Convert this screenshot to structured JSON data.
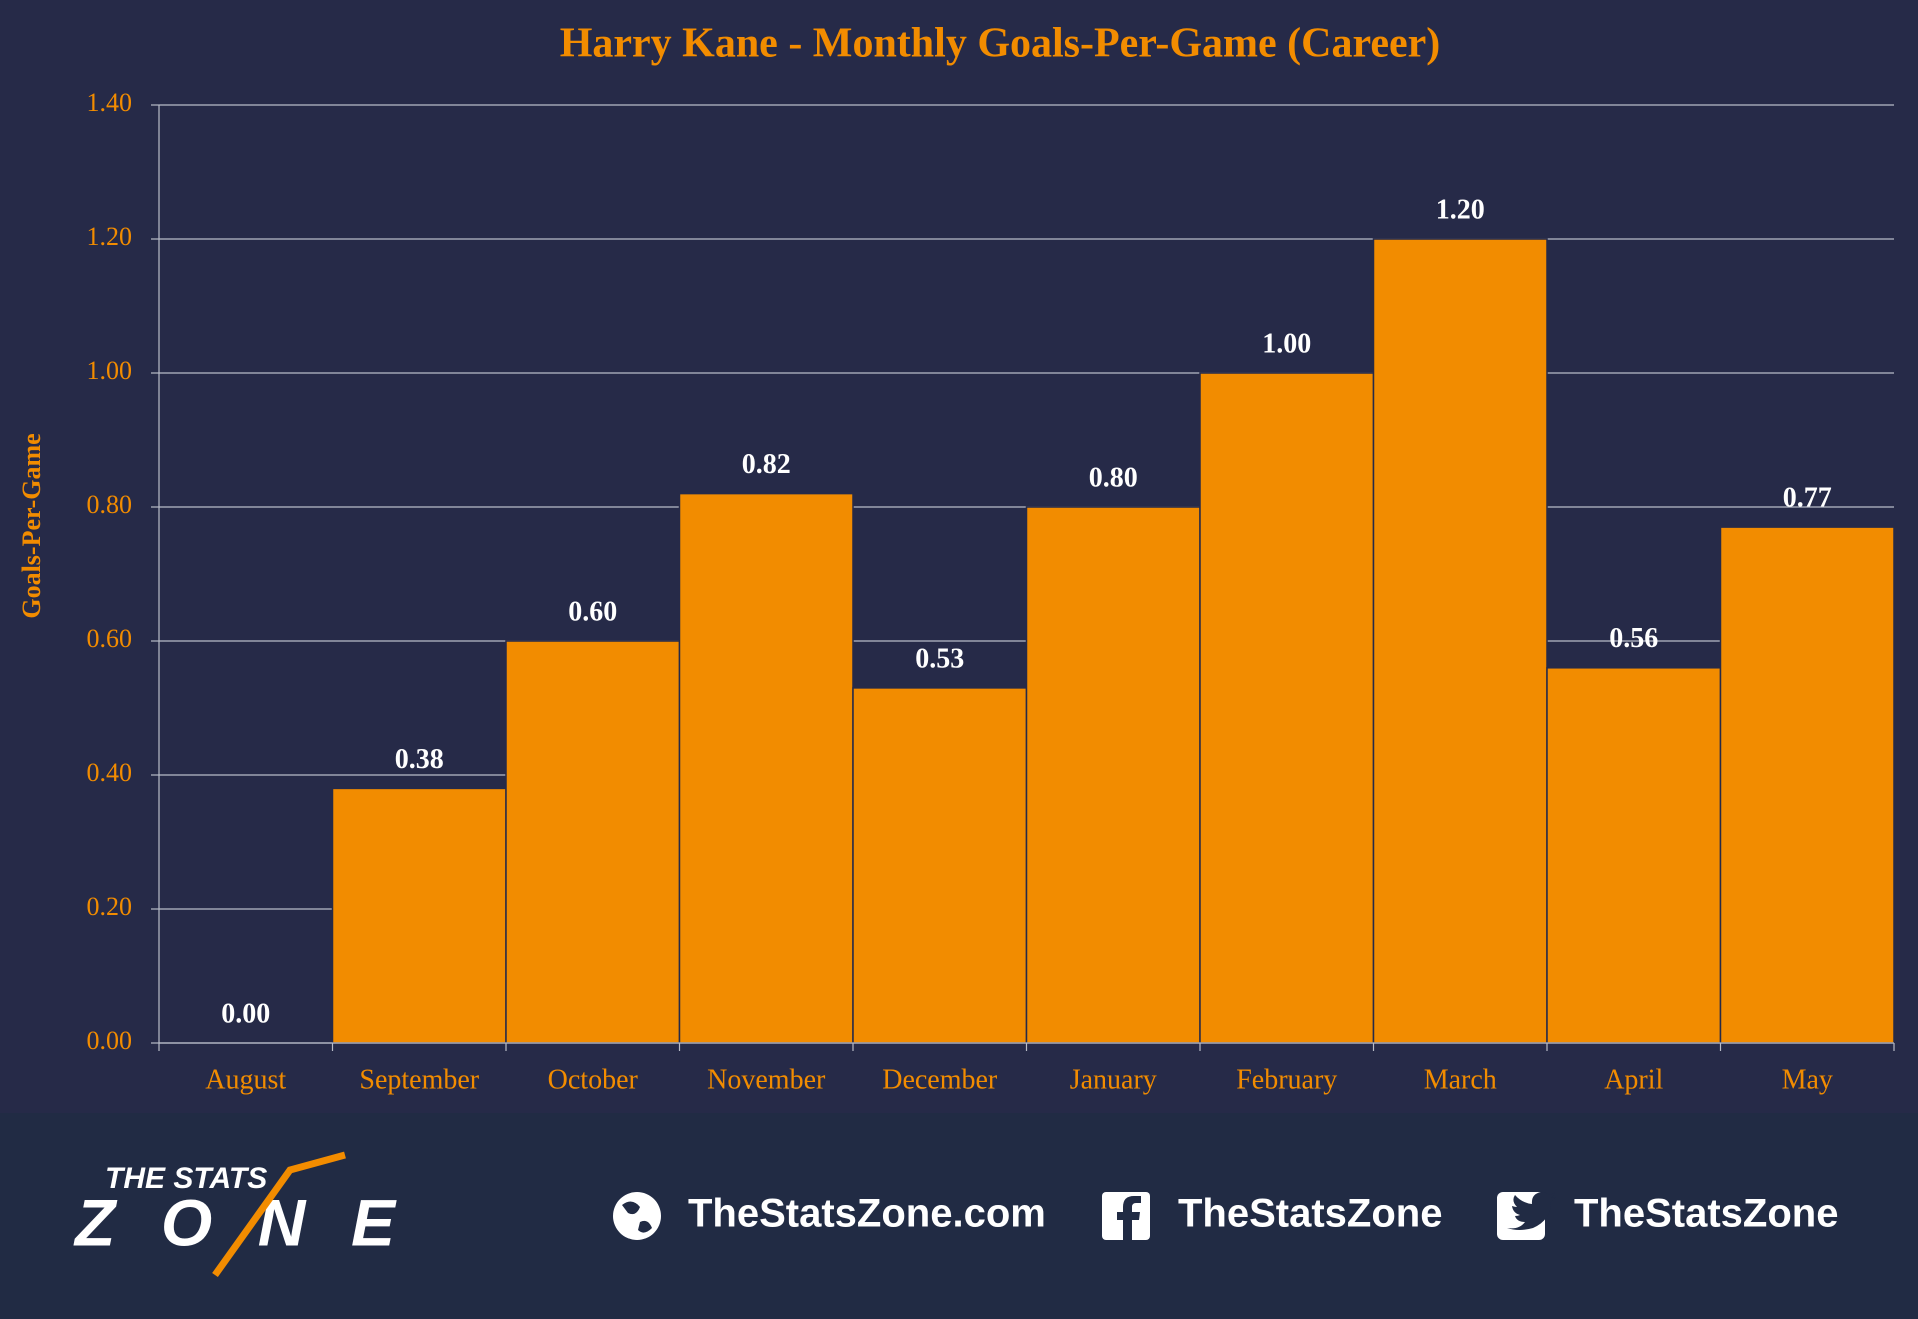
{
  "chart_data": {
    "type": "bar",
    "title": "Harry Kane - Monthly Goals-Per-Game (Career)",
    "y_label": "Goals-Per-Game",
    "categories": [
      "August",
      "September",
      "October",
      "November",
      "December",
      "January",
      "February",
      "March",
      "April",
      "May"
    ],
    "values": [
      0,
      0.38,
      0.6,
      0.82,
      0.53,
      0.8,
      1.0,
      1.2,
      0.56,
      0.77
    ],
    "value_labels": [
      "0.00",
      "0.38",
      "0.60",
      "0.82",
      "0.53",
      "0.80",
      "1.00",
      "1.20",
      "0.56",
      "0.77"
    ],
    "color": "#f28c00",
    "ylim": [
      0,
      1.4
    ],
    "yticks": [
      {
        "value": 0,
        "label": "0.00"
      },
      {
        "value": 0.2,
        "label": "0.20"
      },
      {
        "value": 0.4,
        "label": "0.40"
      },
      {
        "value": 0.6,
        "label": "0.60"
      },
      {
        "value": 0.8,
        "label": "0.80"
      },
      {
        "value": 1.0,
        "label": "1.00"
      },
      {
        "value": 1.2,
        "label": "1.20"
      },
      {
        "value": 1.4,
        "label": "1.40"
      }
    ],
    "grid": true
  },
  "footer": {
    "logo_top": "THE STATS",
    "logo_bottom": "ZONE",
    "website": "TheStatsZone.com",
    "facebook": "TheStatsZone",
    "twitter": "TheStatsZone"
  }
}
